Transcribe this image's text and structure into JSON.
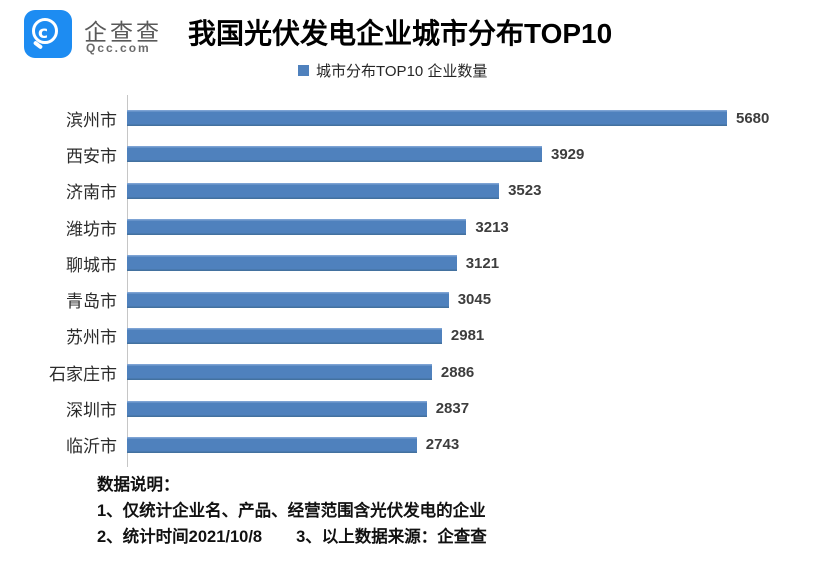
{
  "brand": {
    "name": "企查查",
    "domain": "Qcc.com",
    "logo_icon": "qcc-magnifier-icon",
    "logo_color": "#1d8cf2"
  },
  "header": {
    "title": "我国光伏发电企业城市分布TOP10"
  },
  "chart_data": {
    "type": "bar",
    "orientation": "horizontal",
    "title": "我国光伏发电企业城市分布TOP10",
    "legend": [
      {
        "label": "城市分布TOP10 企业数量",
        "color": "#4f81bd"
      }
    ],
    "categories": [
      "滨州市",
      "西安市",
      "济南市",
      "潍坊市",
      "聊城市",
      "青岛市",
      "苏州市",
      "石家庄市",
      "深圳市",
      "临沂市"
    ],
    "values": [
      5680,
      3929,
      3523,
      3213,
      3121,
      3045,
      2981,
      2886,
      2837,
      2743
    ],
    "value_labels_shown": true,
    "xlim": [
      0,
      6000
    ],
    "grid": false,
    "bar_color": "#4f81bd",
    "axis_line_color": "#c6c6c6"
  },
  "notes": {
    "heading": "数据说明：",
    "line1": "1、仅统计企业名、产品、经营范围含光伏发电的企业",
    "line2_left": "2、统计时间2021/10/8",
    "line2_right": "3、以上数据来源：企查查"
  }
}
